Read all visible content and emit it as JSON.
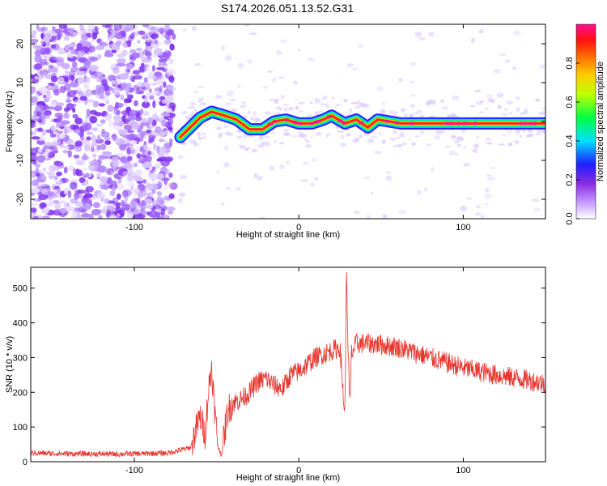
{
  "title": "S174.2026.051.13.52.G31",
  "chart_data": [
    {
      "type": "heatmap",
      "xlabel": "Height of straight line (km)",
      "ylabel": "Frequency (Hz)",
      "xlim": [
        -163,
        150
      ],
      "ylim": [
        -25,
        25
      ],
      "xticks": [
        -100,
        0,
        100
      ],
      "yticks": [
        -20,
        -10,
        0,
        10,
        20
      ],
      "colorbar": {
        "label": "Normalized spectral amplitude",
        "range": [
          0,
          1
        ],
        "ticks": [
          "0.0",
          "0.2",
          "0.4",
          "0.6",
          "0.8"
        ]
      },
      "ridge": [
        {
          "x": -72,
          "f": -4
        },
        {
          "x": -66,
          "f": -1.5
        },
        {
          "x": -60,
          "f": 1
        },
        {
          "x": -53,
          "f": 2.5
        },
        {
          "x": -45,
          "f": 1.5
        },
        {
          "x": -38,
          "f": 0.5
        },
        {
          "x": -30,
          "f": -2
        },
        {
          "x": -22,
          "f": -2
        },
        {
          "x": -15,
          "f": 0
        },
        {
          "x": -8,
          "f": 0.5
        },
        {
          "x": 0,
          "f": -0.5
        },
        {
          "x": 8,
          "f": -0.5
        },
        {
          "x": 15,
          "f": 0.5
        },
        {
          "x": 20,
          "f": 1.5
        },
        {
          "x": 28,
          "f": -0.5
        },
        {
          "x": 35,
          "f": 0.5
        },
        {
          "x": 42,
          "f": -1.5
        },
        {
          "x": 48,
          "f": 0.5
        },
        {
          "x": 55,
          "f": 0
        },
        {
          "x": 62,
          "f": -0.5
        },
        {
          "x": 150,
          "f": -0.5
        }
      ]
    },
    {
      "type": "line",
      "xlabel": "Height of straight line (km)",
      "ylabel": "SNR (10 * v/v)",
      "xlim": [
        -163,
        150
      ],
      "ylim": [
        0,
        560
      ],
      "xticks": [
        -100,
        0,
        100
      ],
      "yticks": [
        0,
        100,
        200,
        300,
        400,
        500
      ],
      "color": "#e8322b",
      "series": [
        {
          "x": [
            -163,
            -140,
            -110,
            -80,
            -66,
            -60,
            -57,
            -55,
            -53,
            -51,
            -49,
            -47,
            -45,
            -43,
            -40,
            -35,
            -30,
            -25,
            -20,
            -15,
            -10,
            -5,
            0,
            10,
            20,
            25,
            28,
            29,
            30,
            31,
            32,
            35,
            45,
            60,
            80,
            100,
            120,
            140,
            150
          ],
          "y": [
            25,
            23,
            22,
            25,
            40,
            130,
            80,
            200,
            275,
            140,
            40,
            20,
            90,
            150,
            170,
            180,
            200,
            230,
            240,
            220,
            210,
            250,
            260,
            300,
            320,
            330,
            130,
            560,
            320,
            150,
            310,
            340,
            340,
            330,
            300,
            270,
            250,
            235,
            225
          ]
        }
      ]
    }
  ]
}
